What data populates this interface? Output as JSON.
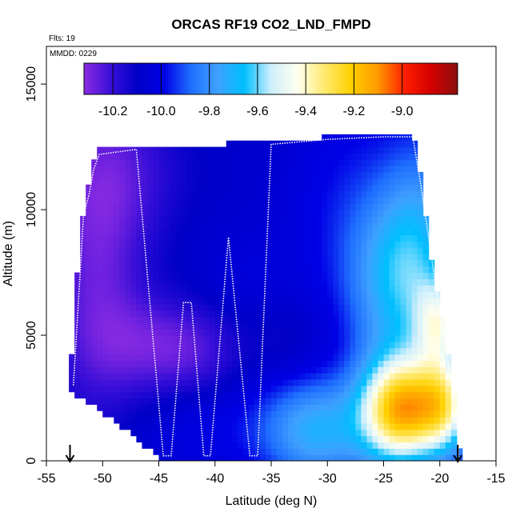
{
  "chart_data": {
    "type": "heatmap",
    "title": "ORCAS RF19 CO2_LND_FMPD",
    "annotations": {
      "flights": "Flts: 19",
      "date": "MMDD: 0229"
    },
    "xlabel": "Latitude (deg N)",
    "ylabel": "Altitude (m)",
    "xlim": [
      -55,
      -15
    ],
    "ylim": [
      0,
      16500
    ],
    "x_ticks": [
      -55,
      -50,
      -45,
      -40,
      -35,
      -30,
      -25,
      -20,
      -15
    ],
    "y_ticks": [
      0,
      5000,
      10000,
      15000
    ],
    "colorbar": {
      "range": [
        -10.32,
        -8.77
      ],
      "ticks": [
        -10.2,
        -10.0,
        -9.8,
        -9.6,
        -9.4,
        -9.2,
        -9.0
      ],
      "tick_labels": [
        "-10.2",
        "-10.0",
        "-9.8",
        "-9.6",
        "-9.4",
        "-9.2",
        "-9.0"
      ],
      "colors": [
        "#8a2be2",
        "#3a0fd8",
        "#0000c8",
        "#0000e6",
        "#1f6fff",
        "#3fa0ff",
        "#00bfff",
        "#cdeefc",
        "#fffff0",
        "#ffea70",
        "#ffd000",
        "#ff9a00",
        "#ff2000",
        "#d40000",
        "#8b1010"
      ]
    },
    "domain_outline": [
      [
        -52.8,
        2800
      ],
      [
        -52.8,
        3800
      ],
      [
        -52.3,
        7200
      ],
      [
        -51.9,
        9500
      ],
      [
        -51.4,
        10500
      ],
      [
        -51.0,
        11700
      ],
      [
        -50.4,
        12400
      ],
      [
        -47.0,
        12500
      ],
      [
        -43.0,
        12500
      ],
      [
        -40.0,
        12600
      ],
      [
        -35.0,
        12700
      ],
      [
        -30.0,
        12900
      ],
      [
        -25.0,
        13000
      ],
      [
        -22.3,
        13000
      ],
      [
        -21.6,
        11000
      ],
      [
        -20.9,
        8500
      ],
      [
        -20.0,
        6200
      ],
      [
        -19.5,
        5300
      ],
      [
        -19.0,
        3300
      ],
      [
        -18.4,
        2000
      ],
      [
        -18.2,
        0
      ],
      [
        -44.6,
        0
      ],
      [
        -46.5,
        700
      ],
      [
        -48.5,
        1400
      ],
      [
        -50.5,
        2100
      ],
      [
        -52.2,
        2600
      ]
    ],
    "flight_track": {
      "points": [
        [
          -52.6,
          3000
        ],
        [
          -52.0,
          7500
        ],
        [
          -51.7,
          9800
        ],
        [
          -51.2,
          10600
        ],
        [
          -50.8,
          11600
        ],
        [
          -50.3,
          12200
        ],
        [
          -47.0,
          12400
        ],
        [
          -44.6,
          200
        ],
        [
          -43.9,
          200
        ],
        [
          -42.8,
          6300
        ],
        [
          -42.1,
          6300
        ],
        [
          -41.0,
          200
        ],
        [
          -40.4,
          200
        ],
        [
          -38.8,
          8900
        ],
        [
          -36.9,
          200
        ],
        [
          -36.2,
          200
        ],
        [
          -35.0,
          12600
        ],
        [
          -30.0,
          12800
        ],
        [
          -25.0,
          12900
        ],
        [
          -22.4,
          12900
        ],
        [
          -21.7,
          11000
        ],
        [
          -20.9,
          8600
        ],
        [
          -20.1,
          6200
        ],
        [
          -19.6,
          5200
        ],
        [
          -19.1,
          3200
        ],
        [
          -18.5,
          2000
        ],
        [
          -18.3,
          0
        ]
      ]
    },
    "arrows": {
      "x": [
        -52.9,
        -18.4
      ]
    },
    "field_features": {
      "background": -10.08,
      "blobs": [
        {
          "x": -50.5,
          "alt": 7500,
          "sx": 3.0,
          "sa": 4000,
          "amp": -0.18
        },
        {
          "x": -48.5,
          "alt": 11500,
          "sx": 4.0,
          "sa": 2000,
          "amp": -0.12
        },
        {
          "x": -42.0,
          "alt": 4400,
          "sx": 3.5,
          "sa": 1400,
          "amp": -0.17
        },
        {
          "x": -47.0,
          "alt": 4600,
          "sx": 3.5,
          "sa": 1400,
          "amp": -0.1
        },
        {
          "x": -38.0,
          "alt": 6500,
          "sx": 3.5,
          "sa": 2000,
          "amp": 0.05
        },
        {
          "x": -28.0,
          "alt": 10000,
          "sx": 4.0,
          "sa": 3500,
          "amp": 0.1
        },
        {
          "x": -24.0,
          "alt": 7000,
          "sx": 3.0,
          "sa": 2500,
          "amp": 0.3
        },
        {
          "x": -21.5,
          "alt": 9000,
          "sx": 2.5,
          "sa": 3000,
          "amp": 0.22
        },
        {
          "x": -31.0,
          "alt": 1200,
          "sx": 3.5,
          "sa": 1500,
          "amp": 0.35
        },
        {
          "x": -23.5,
          "alt": 2000,
          "sx": 2.5,
          "sa": 1500,
          "amp": 0.85
        },
        {
          "x": -19.5,
          "alt": 2200,
          "sx": 1.8,
          "sa": 1400,
          "amp": 0.55
        },
        {
          "x": -20.0,
          "alt": 5500,
          "sx": 1.5,
          "sa": 1200,
          "amp": 0.4
        },
        {
          "x": -41.0,
          "alt": 1500,
          "sx": 4.5,
          "sa": 1500,
          "amp": 0.08
        },
        {
          "x": -33.5,
          "alt": 4800,
          "sx": 2.5,
          "sa": 1200,
          "amp": -0.06
        }
      ]
    }
  }
}
